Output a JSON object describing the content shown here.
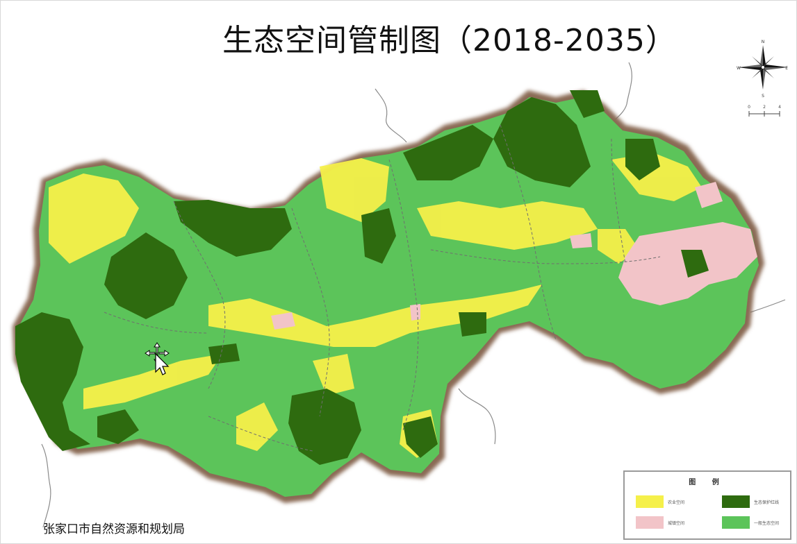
{
  "map": {
    "title": "生态空间管制图（2018-2035）",
    "footer": "张家口市自然资源和规划局",
    "colors": {
      "agri_space": "#f5f04a",
      "eco_protection": "#2e6b0f",
      "urban_space": "#f2c4c8",
      "general_eco": "#5cc45a",
      "border": "#8a6b55"
    }
  },
  "legend": {
    "title": "图 例",
    "items": [
      {
        "label": "农业空间",
        "color": "#f5f04a"
      },
      {
        "label": "生态保护红线",
        "color": "#2e6b0f"
      },
      {
        "label": "城镇空间",
        "color": "#f2c4c8"
      },
      {
        "label": "一般生态空间",
        "color": "#5cc45a"
      }
    ]
  },
  "compass": {
    "north": "N",
    "south": "S",
    "east": "E",
    "west": "W",
    "scale_labels": [
      "0",
      "2",
      "4"
    ]
  },
  "icons": {
    "compass": "north-arrow-icon",
    "cursor": "move-cursor-icon"
  }
}
